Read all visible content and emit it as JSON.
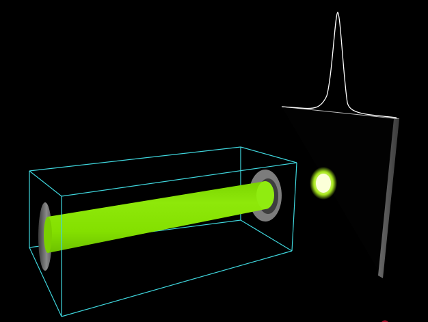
{
  "scene": {
    "background_color": "#000000",
    "colors": {
      "box_edge": "#3fd6dd",
      "beam": "#84e000",
      "beam_highlight": "#a8f23a",
      "mirror": "#8a8a8a",
      "mirror_dark": "#3a3a3a",
      "screen_edge": "#5a5a5a",
      "spot": "#f4ffb0",
      "spot_glow": "#b8ff20",
      "profile_curve": "#ffffff"
    },
    "icons": [
      "optical-cavity-box",
      "laser-beam",
      "cavity-mirror",
      "detection-screen",
      "beam-spot",
      "intensity-profile-curve"
    ]
  }
}
